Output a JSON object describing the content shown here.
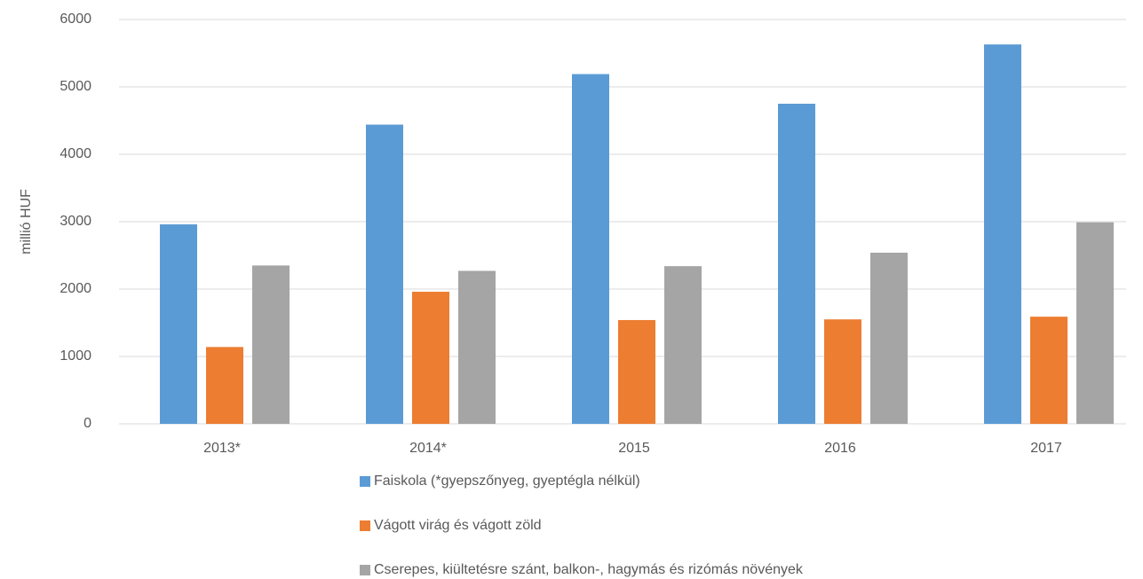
{
  "chart_data": {
    "type": "bar",
    "y_label": "millió HUF",
    "categories": [
      "2013*",
      "2014*",
      "2015",
      "2016",
      "2017"
    ],
    "series": [
      {
        "name": "Faiskola (*gyepszőnyeg, gyeptégla nélkül)",
        "color": "#5b9bd5",
        "values": [
          2960,
          4440,
          5190,
          4750,
          5630
        ]
      },
      {
        "name": "Vágott virág és vágott zöld",
        "color": "#ed7d31",
        "values": [
          1140,
          1960,
          1540,
          1550,
          1590
        ]
      },
      {
        "name": "Cserepes, kiültetésre szánt, balkon-, hagymás és rizómás növények",
        "color": "#a5a5a5",
        "values": [
          2350,
          2270,
          2340,
          2540,
          2990
        ]
      }
    ],
    "ylim": [
      0,
      6000
    ],
    "yticks": [
      0,
      1000,
      2000,
      3000,
      4000,
      5000,
      6000
    ],
    "grid": true,
    "legend": "bottom"
  }
}
